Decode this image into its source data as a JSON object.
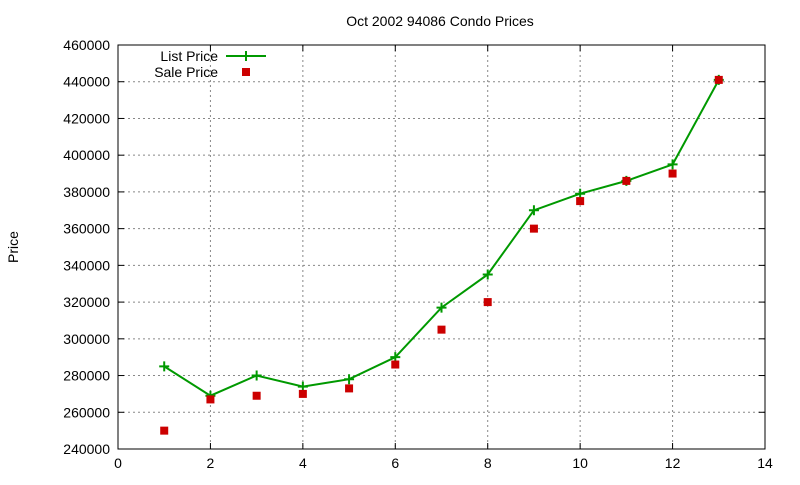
{
  "chart_data": {
    "type": "line",
    "title": "Oct 2002 94086 Condo Prices",
    "xlabel": "",
    "ylabel": "Price",
    "xlim": [
      0,
      14
    ],
    "ylim": [
      240000,
      460000
    ],
    "xticks": [
      "0",
      "2",
      "4",
      "6",
      "8",
      "10",
      "12",
      "14"
    ],
    "yticks": [
      "240000",
      "260000",
      "280000",
      "300000",
      "320000",
      "340000",
      "360000",
      "380000",
      "400000",
      "420000",
      "440000",
      "460000"
    ],
    "grid": true,
    "legend": "top-left",
    "series": [
      {
        "name": "List Price",
        "style": "line-plus",
        "color": "#009900",
        "x": [
          1,
          2,
          3,
          4,
          5,
          6,
          7,
          8,
          9,
          10,
          11,
          12,
          13
        ],
        "y": [
          285000,
          269000,
          280000,
          274000,
          278000,
          290000,
          317000,
          335000,
          370000,
          379000,
          386000,
          395000,
          441000
        ]
      },
      {
        "name": "Sale Price",
        "style": "square-points",
        "color": "#cc0000",
        "x": [
          1,
          2,
          3,
          4,
          5,
          6,
          7,
          8,
          9,
          10,
          11,
          12,
          13
        ],
        "y": [
          250000,
          267000,
          269000,
          270000,
          273000,
          286000,
          305000,
          320000,
          360000,
          375000,
          386000,
          390000,
          441000
        ]
      }
    ]
  }
}
